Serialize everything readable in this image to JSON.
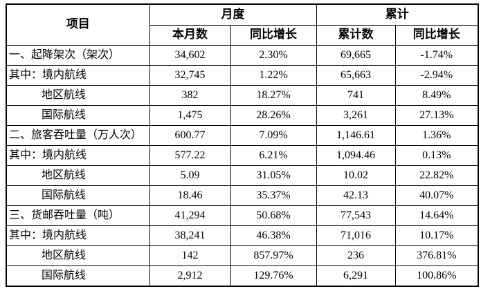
{
  "page": {
    "background_color": "#ffffff",
    "border_color": "#000000",
    "text_color": "#000000"
  },
  "table": {
    "header": {
      "item": "项目",
      "monthly_group": "月度",
      "cumulative_group": "累计",
      "monthly_value": "本月数",
      "monthly_yoy": "同比增长",
      "cumulative_value": "累计数",
      "cumulative_yoy": "同比增长"
    },
    "rows": [
      {
        "label": "一、起降架次（架次）",
        "indent": false,
        "monthly_value": "34,602",
        "monthly_yoy": "2.30%",
        "cumulative_value": "69,665",
        "cumulative_yoy": "-1.74%"
      },
      {
        "label": "其中：境内航线",
        "indent": false,
        "monthly_value": "32,745",
        "monthly_yoy": "1.22%",
        "cumulative_value": "65,663",
        "cumulative_yoy": "-2.94%"
      },
      {
        "label": "地区航线",
        "indent": true,
        "monthly_value": "382",
        "monthly_yoy": "18.27%",
        "cumulative_value": "741",
        "cumulative_yoy": "8.49%"
      },
      {
        "label": "国际航线",
        "indent": true,
        "monthly_value": "1,475",
        "monthly_yoy": "28.26%",
        "cumulative_value": "3,261",
        "cumulative_yoy": "27.13%"
      },
      {
        "label": "二、旅客吞吐量（万人次）",
        "indent": false,
        "monthly_value": "600.77",
        "monthly_yoy": "7.09%",
        "cumulative_value": "1,146.61",
        "cumulative_yoy": "1.36%"
      },
      {
        "label": "其中：境内航线",
        "indent": false,
        "monthly_value": "577.22",
        "monthly_yoy": "6.21%",
        "cumulative_value": "1,094.46",
        "cumulative_yoy": "0.13%"
      },
      {
        "label": "地区航线",
        "indent": true,
        "monthly_value": "5.09",
        "monthly_yoy": "31.05%",
        "cumulative_value": "10.02",
        "cumulative_yoy": "22.82%"
      },
      {
        "label": "国际航线",
        "indent": true,
        "monthly_value": "18.46",
        "monthly_yoy": "35.37%",
        "cumulative_value": "42.13",
        "cumulative_yoy": "40.07%"
      },
      {
        "label": "三、货邮吞吐量（吨）",
        "indent": false,
        "monthly_value": "41,294",
        "monthly_yoy": "50.68%",
        "cumulative_value": "77,543",
        "cumulative_yoy": "14.64%"
      },
      {
        "label": "其中：境内航线",
        "indent": false,
        "monthly_value": "38,241",
        "monthly_yoy": "46.38%",
        "cumulative_value": "71,016",
        "cumulative_yoy": "10.17%"
      },
      {
        "label": "地区航线",
        "indent": true,
        "monthly_value": "142",
        "monthly_yoy": "857.97%",
        "cumulative_value": "236",
        "cumulative_yoy": "376.81%"
      },
      {
        "label": "国际航线",
        "indent": true,
        "monthly_value": "2,912",
        "monthly_yoy": "129.76%",
        "cumulative_value": "6,291",
        "cumulative_yoy": "100.86%"
      }
    ]
  },
  "chart_data": {
    "type": "table",
    "columns": [
      "项目",
      "月度 本月数",
      "月度 同比增长",
      "累计 累计数",
      "累计 同比增长"
    ],
    "rows": [
      [
        "一、起降架次（架次）",
        "34,602",
        "2.30%",
        "69,665",
        "-1.74%"
      ],
      [
        "其中：境内航线",
        "32,745",
        "1.22%",
        "65,663",
        "-2.94%"
      ],
      [
        "地区航线",
        "382",
        "18.27%",
        "741",
        "8.49%"
      ],
      [
        "国际航线",
        "1,475",
        "28.26%",
        "3,261",
        "27.13%"
      ],
      [
        "二、旅客吞吐量（万人次）",
        "600.77",
        "7.09%",
        "1,146.61",
        "1.36%"
      ],
      [
        "其中：境内航线",
        "577.22",
        "6.21%",
        "1,094.46",
        "0.13%"
      ],
      [
        "地区航线",
        "5.09",
        "31.05%",
        "10.02",
        "22.82%"
      ],
      [
        "国际航线",
        "18.46",
        "35.37%",
        "42.13",
        "40.07%"
      ],
      [
        "三、货邮吞吐量（吨）",
        "41,294",
        "50.68%",
        "77,543",
        "14.64%"
      ],
      [
        "其中：境内航线",
        "38,241",
        "46.38%",
        "71,016",
        "10.17%"
      ],
      [
        "地区航线",
        "142",
        "857.97%",
        "236",
        "376.81%"
      ],
      [
        "国际航线",
        "2,912",
        "129.76%",
        "6,291",
        "100.86%"
      ]
    ]
  }
}
